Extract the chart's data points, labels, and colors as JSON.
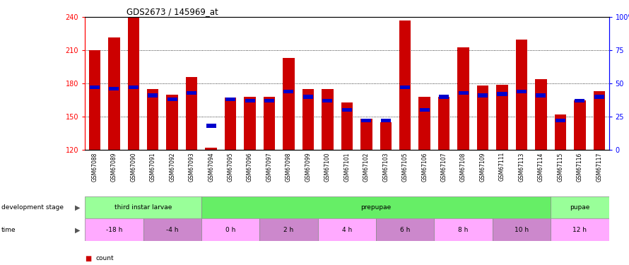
{
  "title": "GDS2673 / 145969_at",
  "samples": [
    "GSM67088",
    "GSM67089",
    "GSM67090",
    "GSM67091",
    "GSM67092",
    "GSM67093",
    "GSM67094",
    "GSM67095",
    "GSM67096",
    "GSM67097",
    "GSM67098",
    "GSM67099",
    "GSM67100",
    "GSM67101",
    "GSM67102",
    "GSM67103",
    "GSM67105",
    "GSM67106",
    "GSM67107",
    "GSM67108",
    "GSM67109",
    "GSM67111",
    "GSM67113",
    "GSM67114",
    "GSM67115",
    "GSM67116",
    "GSM67117"
  ],
  "counts": [
    210,
    222,
    240,
    175,
    170,
    186,
    122,
    167,
    168,
    168,
    203,
    175,
    175,
    163,
    148,
    145,
    237,
    168,
    168,
    213,
    178,
    179,
    220,
    184,
    152,
    165,
    173
  ],
  "percentile_ranks": [
    47,
    46,
    47,
    41,
    38,
    43,
    18,
    38,
    37,
    37,
    44,
    40,
    37,
    30,
    22,
    22,
    47,
    30,
    40,
    43,
    41,
    42,
    44,
    41,
    22,
    37,
    40
  ],
  "ymin": 120,
  "ymax": 240,
  "yticks": [
    120,
    150,
    180,
    210,
    240
  ],
  "y2ticks": [
    0,
    25,
    50,
    75,
    100
  ],
  "bar_color": "#cc0000",
  "percentile_color": "#0000cc",
  "dev_stages": [
    {
      "label": "third instar larvae",
      "start": 0,
      "end": 6,
      "color": "#99ff99"
    },
    {
      "label": "prepupae",
      "start": 6,
      "end": 24,
      "color": "#66ee66"
    },
    {
      "label": "pupae",
      "start": 24,
      "end": 27,
      "color": "#99ff99"
    }
  ],
  "time_blocks": [
    {
      "label": "-18 h",
      "start": 0,
      "end": 3,
      "color": "#ffaaff"
    },
    {
      "label": "-4 h",
      "start": 3,
      "end": 6,
      "color": "#cc88cc"
    },
    {
      "label": "0 h",
      "start": 6,
      "end": 9,
      "color": "#ffaaff"
    },
    {
      "label": "2 h",
      "start": 9,
      "end": 12,
      "color": "#cc88cc"
    },
    {
      "label": "4 h",
      "start": 12,
      "end": 15,
      "color": "#ffaaff"
    },
    {
      "label": "6 h",
      "start": 15,
      "end": 18,
      "color": "#cc88cc"
    },
    {
      "label": "8 h",
      "start": 18,
      "end": 21,
      "color": "#ffaaff"
    },
    {
      "label": "10 h",
      "start": 21,
      "end": 24,
      "color": "#cc88cc"
    },
    {
      "label": "12 h",
      "start": 24,
      "end": 27,
      "color": "#ffaaff"
    }
  ],
  "bg_color": "#ffffff",
  "tick_area_color": "#cccccc"
}
